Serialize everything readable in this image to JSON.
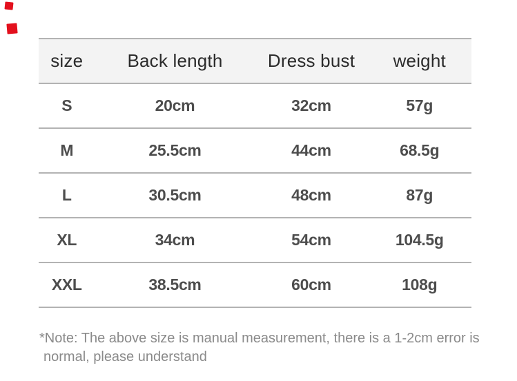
{
  "page": {
    "background": "#ffffff"
  },
  "colors": {
    "header_background": "#f3f3f3",
    "rule_line": "#b3b3b3",
    "header_text": "#2b2b2b",
    "body_text": "#4d4d4d",
    "note_text": "#8a8a8a",
    "accent_red_mark": "#e3101d"
  },
  "decorations": {
    "red_marks_count": 2
  },
  "size_table": {
    "columns": [
      "size",
      "Back length",
      "Dress bust",
      "weight"
    ],
    "rows": [
      [
        "S",
        "20cm",
        "32cm",
        "57g"
      ],
      [
        "M",
        "25.5cm",
        "44cm",
        "68.5g"
      ],
      [
        "L",
        "30.5cm",
        "48cm",
        "87g"
      ],
      [
        "XL",
        "34cm",
        "54cm",
        "104.5g"
      ],
      [
        "XXL",
        "38.5cm",
        "60cm",
        "108g"
      ]
    ]
  },
  "chart_data": {
    "type": "table",
    "title": "",
    "columns": [
      "size",
      "Back length",
      "Dress bust",
      "weight"
    ],
    "rows": [
      [
        "S",
        "20cm",
        "32cm",
        "57g"
      ],
      [
        "M",
        "25.5cm",
        "44cm",
        "68.5g"
      ],
      [
        "L",
        "30.5cm",
        "48cm",
        "87g"
      ],
      [
        "XL",
        "34cm",
        "54cm",
        "104.5g"
      ],
      [
        "XXL",
        "38.5cm",
        "60cm",
        "108g"
      ]
    ]
  },
  "note": {
    "line1": "*Note: The above size is manual measurement, there is a 1-2cm error is",
    "line2": "normal, please understand",
    "full_text": "*Note: The above size is manual measurement, there is a 1-2cm error is normal, please understand"
  }
}
